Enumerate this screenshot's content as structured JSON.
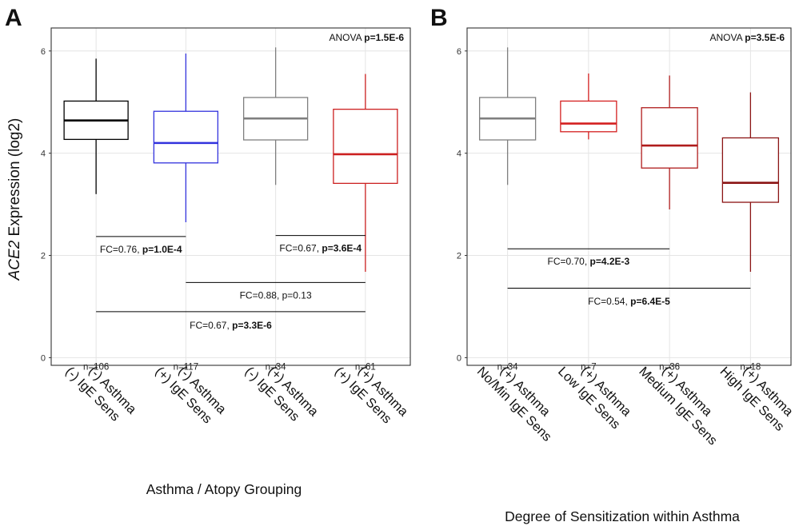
{
  "y_axis_label_italic": "ACE2",
  "y_axis_label_rest": " Expression (log2)",
  "chart_data": [
    {
      "panel_letter": "A",
      "type": "box",
      "xlabel": "Asthma / Atopy Grouping",
      "ylim": [
        -0.15,
        6.45
      ],
      "y_ticks": [
        0,
        2,
        4,
        6
      ],
      "grid": true,
      "anova": {
        "prefix": "ANOVA ",
        "p": "p=1.5E-6"
      },
      "groups": [
        {
          "label_line1": "(-) Asthma",
          "label_line2": "(-) IgE Sens",
          "n": "n=106",
          "color": "#000000",
          "whisker_low": 3.2,
          "q1": 4.27,
          "median": 4.64,
          "q3": 5.02,
          "whisker_high": 5.85
        },
        {
          "label_line1": "(-) Asthma",
          "label_line2": "(+) IgE Sens",
          "n": "n=117",
          "color": "#3333dd",
          "whisker_low": 2.65,
          "q1": 3.81,
          "median": 4.2,
          "q3": 4.82,
          "whisker_high": 5.95
        },
        {
          "label_line1": "(+) Asthma",
          "label_line2": "(-) IgE Sens",
          "n": "n=34",
          "color": "#7f7f7f",
          "whisker_low": 3.38,
          "q1": 4.26,
          "median": 4.68,
          "q3": 5.09,
          "whisker_high": 6.07
        },
        {
          "label_line1": "(+) Asthma",
          "label_line2": "(+) IgE Sens",
          "n": "n=61",
          "color": "#cc2020",
          "whisker_low": 1.68,
          "q1": 3.41,
          "median": 3.98,
          "q3": 4.86,
          "whisker_high": 5.55
        }
      ],
      "comparisons": [
        {
          "from": 1,
          "to": 2,
          "y": 2.37,
          "text_y": 2.12,
          "fc": "FC=0.76, ",
          "p": "p=1.0E-4",
          "p_bold": true
        },
        {
          "from": 3,
          "to": 4,
          "y": 2.39,
          "text_y": 2.14,
          "fc": "FC=0.67, ",
          "p": "p=3.6E-4",
          "p_bold": true
        },
        {
          "from": 2,
          "to": 4,
          "y": 1.47,
          "text_y": 1.22,
          "fc": "FC=0.88, ",
          "p": "p=0.13",
          "p_bold": false
        },
        {
          "from": 1,
          "to": 4,
          "y": 0.9,
          "text_y": 0.63,
          "fc": "FC=0.67, ",
          "p": "p=3.3E-6",
          "p_bold": true
        }
      ]
    },
    {
      "panel_letter": "B",
      "type": "box",
      "xlabel": "Degree of Sensitization within Asthma",
      "ylim": [
        -0.15,
        6.45
      ],
      "y_ticks": [
        0,
        2,
        4,
        6
      ],
      "grid": true,
      "anova": {
        "prefix": "ANOVA ",
        "p": "p=3.5E-6"
      },
      "groups": [
        {
          "label_line1": "(+) Asthma",
          "label_line2": "No/Min IgE Sens",
          "n": "n=34",
          "color": "#7f7f7f",
          "whisker_low": 3.38,
          "q1": 4.26,
          "median": 4.68,
          "q3": 5.09,
          "whisker_high": 6.07
        },
        {
          "label_line1": "(+) Asthma",
          "label_line2": "Low IgE Sens",
          "n": "n=7",
          "color": "#d42020",
          "whisker_low": 4.27,
          "q1": 4.42,
          "median": 4.58,
          "q3": 5.02,
          "whisker_high": 5.56
        },
        {
          "label_line1": "(+) Asthma",
          "label_line2": "Medium IgE Sens",
          "n": "n=36",
          "color": "#b01c1c",
          "whisker_low": 2.9,
          "q1": 3.71,
          "median": 4.15,
          "q3": 4.89,
          "whisker_high": 5.52
        },
        {
          "label_line1": "(+) Asthma",
          "label_line2": "High IgE Sens",
          "n": "n=18",
          "color": "#8b1414",
          "whisker_low": 1.68,
          "q1": 3.04,
          "median": 3.42,
          "q3": 4.3,
          "whisker_high": 5.19
        }
      ],
      "comparisons": [
        {
          "from": 1,
          "to": 3,
          "y": 2.13,
          "text_y": 1.88,
          "fc": "FC=0.70, ",
          "p": "p=4.2E-3",
          "p_bold": true
        },
        {
          "from": 1,
          "to": 4,
          "y": 1.36,
          "text_y": 1.1,
          "fc": "FC=0.54, ",
          "p": "p=6.4E-5",
          "p_bold": true
        }
      ]
    }
  ]
}
